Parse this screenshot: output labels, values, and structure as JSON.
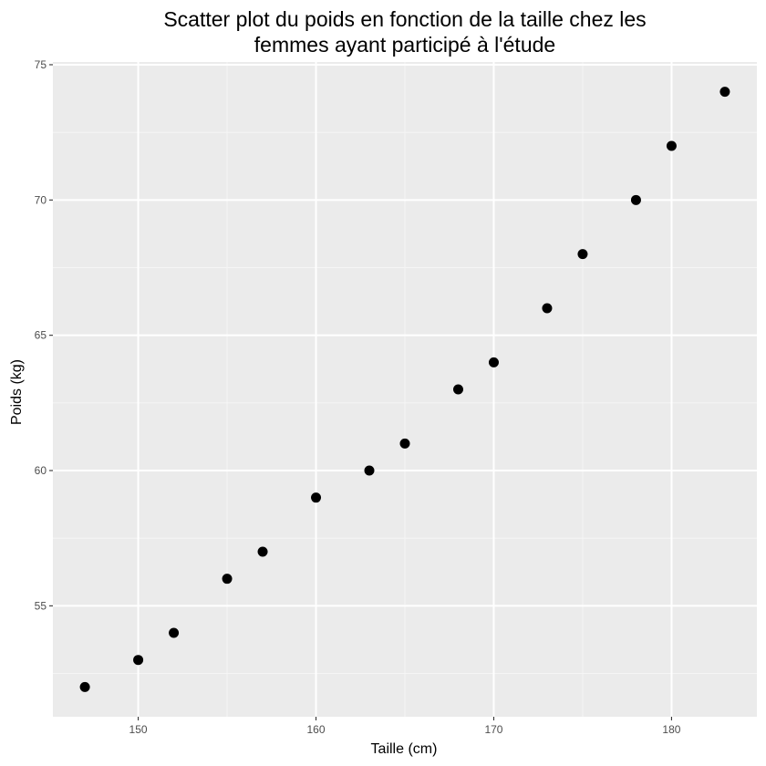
{
  "chart_data": {
    "type": "scatter",
    "title": [
      "Scatter plot du poids en fonction de la taille chez les",
      "femmes ayant participé à l'étude"
    ],
    "xlabel": "Taille (cm)",
    "ylabel": "Poids (kg)",
    "xlim": [
      145.2,
      184.8
    ],
    "ylim": [
      50.9,
      75.1
    ],
    "xticks": [
      150,
      160,
      170,
      180
    ],
    "yticks": [
      55,
      60,
      65,
      70,
      75
    ],
    "grid": true,
    "panel_background": "#ebebeb",
    "grid_major_color": "#ffffff",
    "grid_minor_color": "#f5f5f5",
    "point_color": "#000000",
    "points": [
      {
        "x": 147,
        "y": 52
      },
      {
        "x": 150,
        "y": 53
      },
      {
        "x": 152,
        "y": 54
      },
      {
        "x": 155,
        "y": 56
      },
      {
        "x": 157,
        "y": 57
      },
      {
        "x": 160,
        "y": 59
      },
      {
        "x": 163,
        "y": 60
      },
      {
        "x": 165,
        "y": 61
      },
      {
        "x": 168,
        "y": 63
      },
      {
        "x": 170,
        "y": 64
      },
      {
        "x": 173,
        "y": 66
      },
      {
        "x": 175,
        "y": 68
      },
      {
        "x": 178,
        "y": 70
      },
      {
        "x": 180,
        "y": 72
      },
      {
        "x": 183,
        "y": 74
      }
    ]
  }
}
